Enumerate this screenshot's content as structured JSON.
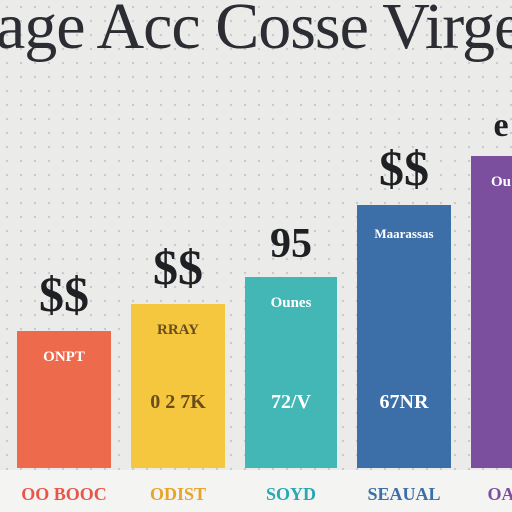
{
  "title": "age Acc Cosse Virge",
  "chart_data": {
    "type": "bar",
    "title": "age Acc Cosse Virge",
    "categories": [
      "OO BOOC",
      "ODIST",
      "SOYD",
      "SEAUAL",
      "OA"
    ],
    "values": [
      137,
      164,
      191,
      263,
      312
    ],
    "colors": [
      "#ee6a4c",
      "#f4c73e",
      "#43b7b6",
      "#3c6ea8",
      "#7c4e9e"
    ],
    "axis_label_colors": [
      "#e8564a",
      "#e8a32a",
      "#2aa7b0",
      "#3c6ea8",
      "#7c4e9e"
    ],
    "ylim": [
      0,
      340
    ],
    "grid": false,
    "inner_labels": [
      "ONPT",
      "RRAY",
      "Ounes",
      "Maarassas",
      "Ou"
    ],
    "value_labels": [
      "",
      "0 2 7K",
      "72/V",
      "67NR",
      ""
    ],
    "annotations": [
      "$$",
      "$$",
      "95",
      "$$",
      "e"
    ]
  }
}
